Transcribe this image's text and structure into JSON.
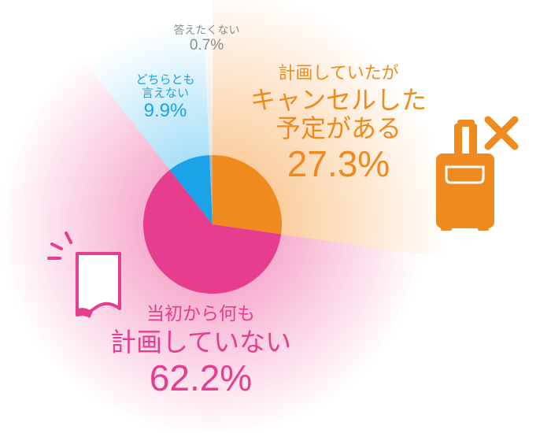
{
  "chart_data": {
    "type": "pie",
    "slices": [
      {
        "name_lines": [
          "計画していたが",
          "キャンセルした",
          "予定がある"
        ],
        "value": 27.3,
        "value_label": "27.3%",
        "color": "#ef8a1e"
      },
      {
        "name_lines": [
          "当初から何も",
          "計画していない"
        ],
        "value": 62.2,
        "value_label": "62.2%",
        "color": "#e63d8e"
      },
      {
        "name_lines": [
          "どちらとも",
          "言えない"
        ],
        "value": 9.9,
        "value_label": "9.9%",
        "color": "#1aa3e6"
      },
      {
        "name_lines": [
          "答えたくない"
        ],
        "value": 0.7,
        "value_label": "0.7%",
        "color": "#b3b3b3"
      }
    ],
    "start_angle_deg": 0,
    "direction": "clockwise"
  },
  "icons": {
    "suitcase": "suitcase-icon",
    "cross": "cross-icon",
    "document": "document-icon"
  }
}
